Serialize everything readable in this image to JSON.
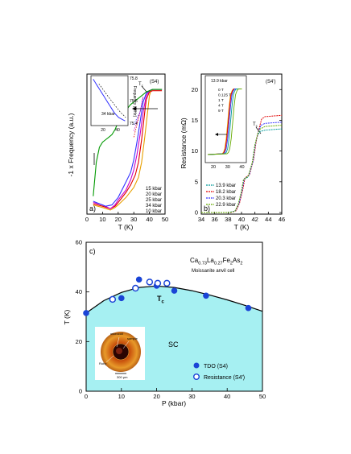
{
  "chart_data": [
    {
      "panel": "a)",
      "type": "line",
      "sample": "(S4)",
      "xlabel": "T (K)",
      "ylabel": "-1 x Frequency (a.u.)",
      "xlim": [
        0,
        50
      ],
      "xticks": [
        "0",
        "10",
        "20",
        "30",
        "40",
        "50"
      ],
      "tc_label": "T",
      "tc_sub": "c",
      "legend_position": "lower-right",
      "series": [
        {
          "name": "15 kbar",
          "color": "#e8a000",
          "x": [
            4,
            10,
            15,
            18,
            20,
            25,
            30,
            33,
            35,
            37,
            39,
            40,
            41,
            42,
            45,
            48
          ],
          "y": [
            0.06,
            0.04,
            0.02,
            0.04,
            0.06,
            0.12,
            0.2,
            0.28,
            0.4,
            0.6,
            0.82,
            0.93,
            0.97,
            0.98,
            0.98,
            0.98
          ]
        },
        {
          "name": "20 kbar",
          "color": "#e00000",
          "x": [
            4,
            10,
            15,
            18,
            20,
            25,
            28,
            31,
            33,
            35,
            37,
            38,
            40,
            42,
            45,
            48
          ],
          "y": [
            0.07,
            0.05,
            0.03,
            0.05,
            0.08,
            0.16,
            0.22,
            0.3,
            0.4,
            0.58,
            0.8,
            0.9,
            0.96,
            0.97,
            0.97,
            0.97
          ]
        },
        {
          "name": "25 kbar",
          "color": "#cc00cc",
          "x": [
            4,
            10,
            15,
            18,
            20,
            25,
            28,
            30,
            32,
            34,
            36,
            38,
            40,
            42,
            45,
            48
          ],
          "y": [
            0.08,
            0.06,
            0.03,
            0.06,
            0.1,
            0.18,
            0.26,
            0.34,
            0.46,
            0.62,
            0.8,
            0.93,
            0.97,
            0.98,
            0.98,
            0.98
          ]
        },
        {
          "name": "34 kbar",
          "color": "#3333ff",
          "x": [
            4,
            8,
            12,
            16,
            20,
            24,
            28,
            30,
            32,
            34,
            36,
            38,
            40,
            42,
            45,
            48
          ],
          "y": [
            0.09,
            0.07,
            0.05,
            0.06,
            0.12,
            0.22,
            0.32,
            0.42,
            0.56,
            0.72,
            0.88,
            0.95,
            0.97,
            0.98,
            0.98,
            0.98
          ]
        },
        {
          "name": "10 kbar",
          "color": "#009900",
          "x": [
            4,
            6,
            8,
            10,
            12,
            14,
            16,
            18,
            20,
            24,
            28,
            32,
            36,
            38,
            40,
            42,
            45,
            48
          ],
          "y": [
            0.13,
            0.4,
            0.52,
            0.56,
            0.58,
            0.6,
            0.62,
            0.66,
            0.72,
            0.8,
            0.86,
            0.9,
            0.94,
            0.96,
            0.97,
            0.98,
            0.98,
            0.98
          ]
        }
      ],
      "inset": {
        "type": "scatter",
        "ylabel": "Frequency (MHz)",
        "yticks": [
          "75.8",
          "75.6",
          "75.4"
        ],
        "xticks": [
          "20",
          "40"
        ],
        "annotation": "34 kbar",
        "x": [
          2,
          5,
          8,
          11,
          14,
          17,
          20,
          23,
          26,
          29,
          32,
          35,
          38,
          41,
          44,
          47
        ],
        "y": [
          75.79,
          75.76,
          75.73,
          75.7,
          75.67,
          75.64,
          75.61,
          75.58,
          75.55,
          75.52,
          75.49,
          75.47,
          75.45,
          75.44,
          75.43,
          75.42
        ],
        "color": "#3333ff"
      }
    },
    {
      "panel": "b)",
      "type": "line",
      "sample": "(S4')",
      "xlabel": "T (K)",
      "ylabel": "Resistance (mΩ)",
      "xlim": [
        34,
        46
      ],
      "ylim": [
        0,
        22
      ],
      "xticks": [
        "34",
        "36",
        "38",
        "40",
        "42",
        "44",
        "46"
      ],
      "yticks": [
        "0",
        "5",
        "10",
        "15",
        "20"
      ],
      "tc_label": "T",
      "tc_sub": "c",
      "series": [
        {
          "name": "13.9 kbar",
          "color": "#009999",
          "x": [
            34,
            38,
            39,
            39.5,
            40,
            40.3,
            41,
            41.6,
            42,
            42.4,
            42.8,
            43.5,
            46
          ],
          "y": [
            0,
            0,
            0.2,
            1.2,
            3.4,
            5.3,
            5.8,
            8,
            11,
            12.6,
            13.2,
            13.4,
            13.6
          ]
        },
        {
          "name": "18.2 kbar",
          "color": "#e00000",
          "x": [
            34,
            38.4,
            39.2,
            39.7,
            40.2,
            40.5,
            41.2,
            41.8,
            42.2,
            42.6,
            43,
            43.5,
            46
          ],
          "y": [
            0,
            0,
            0.3,
            1.5,
            3.8,
            5.6,
            6.2,
            8.6,
            11.6,
            13.6,
            15.2,
            15.6,
            15.8
          ]
        },
        {
          "name": "20.3 kbar",
          "color": "#3333ff",
          "x": [
            34,
            38.3,
            39.1,
            39.6,
            40.1,
            40.4,
            41.1,
            41.7,
            42.1,
            42.5,
            42.9,
            43.5,
            46
          ],
          "y": [
            0,
            0,
            0.3,
            1.4,
            3.6,
            5.5,
            6,
            8.3,
            11.3,
            13.1,
            14.2,
            14.5,
            14.7
          ]
        },
        {
          "name": "22.9 kbar",
          "color": "#66aa00",
          "x": [
            34,
            38.2,
            39,
            39.5,
            40,
            40.3,
            41,
            41.6,
            42,
            42.4,
            42.8,
            43.5,
            46
          ],
          "y": [
            0,
            0,
            0.2,
            1.3,
            3.5,
            5.4,
            5.9,
            8.1,
            11,
            12.8,
            13.6,
            14,
            14.2
          ]
        }
      ],
      "inset": {
        "type": "line",
        "title": "13.9 kbar",
        "xticks": [
          "20",
          "30",
          "40"
        ],
        "series": [
          {
            "name": "0 T",
            "color": "#e8a000",
            "x": [
              16,
              26,
              27,
              28,
              29,
              30,
              31,
              32,
              33,
              34,
              35,
              40
            ],
            "y": [
              0,
              0.2,
              0.5,
              1.5,
              4,
              8,
              12,
              15,
              16,
              16.5,
              16.5,
              16.5
            ]
          },
          {
            "name": "0.125 T",
            "color": "#e00000",
            "x": [
              16,
              26.4,
              27.4,
              28.4,
              29.4,
              30.4,
              31.4,
              32.4,
              33.4,
              34.4,
              35.4,
              40
            ],
            "y": [
              0,
              0.2,
              0.5,
              1.5,
              4,
              8,
              12,
              15,
              16,
              16.5,
              16.5,
              16.5
            ]
          },
          {
            "name": "1 T",
            "color": "#3333ff",
            "x": [
              16,
              27,
              28,
              29,
              30,
              31,
              32,
              33,
              34,
              35,
              36,
              40
            ],
            "y": [
              0,
              0.2,
              0.5,
              1.5,
              4,
              8,
              12,
              15,
              16,
              16.5,
              16.5,
              16.5
            ]
          },
          {
            "name": "4 T",
            "color": "#009999",
            "x": [
              16,
              28,
              29,
              30,
              31,
              32,
              33,
              34,
              35,
              36,
              37,
              40
            ],
            "y": [
              0,
              0.2,
              0.5,
              1.5,
              4,
              8,
              12,
              15,
              16,
              16.5,
              16.5,
              16.5
            ]
          },
          {
            "name": "9 T",
            "color": "#66aa00",
            "x": [
              16,
              29.5,
              30.5,
              31.5,
              32.5,
              33.5,
              34.5,
              35.5,
              36.5,
              37.5,
              38.5,
              40
            ],
            "y": [
              0,
              0.2,
              0.5,
              1.5,
              4,
              8,
              12,
              15,
              16,
              16.5,
              16.5,
              16.5
            ]
          }
        ]
      }
    },
    {
      "panel": "c)",
      "type": "scatter",
      "xlabel": "P (kbar)",
      "ylabel": "T (K)",
      "xlim": [
        0,
        50
      ],
      "ylim": [
        0,
        60
      ],
      "xticks": [
        "0",
        "10",
        "20",
        "30",
        "40",
        "50"
      ],
      "yticks": [
        "0",
        "20",
        "40",
        "60"
      ],
      "compound_parts": [
        "Ca",
        "0.73",
        "La",
        "0.27",
        "Fe",
        "2",
        "As",
        "2"
      ],
      "cell_label": "Moissanite anvil cell",
      "tc_label": "T",
      "tc_sub": "c",
      "region_label": "SC",
      "region_color": "#a6f0f2",
      "series": [
        {
          "name": "TDO (S4)",
          "style": "filled",
          "color": "#1a44d6",
          "x": [
            0,
            10,
            15,
            20,
            25,
            34,
            46
          ],
          "y": [
            31.5,
            37.5,
            45,
            42.5,
            40.5,
            38.5,
            33.5
          ]
        },
        {
          "name": "Resistance (S4')",
          "style": "open",
          "color": "#1a44d6",
          "x": [
            7.5,
            14,
            18,
            20.3,
            22.9
          ],
          "y": [
            37,
            41.5,
            44,
            43.5,
            43.5
          ]
        }
      ],
      "fit_curve": {
        "x": [
          0,
          5,
          10,
          15,
          20,
          25,
          30,
          35,
          40,
          45,
          50
        ],
        "y": [
          31.5,
          36.5,
          39.8,
          41.8,
          42.4,
          41.8,
          40.5,
          38.8,
          36.8,
          34.6,
          32.2
        ]
      },
      "photo_labels": {
        "gasket": "microcoil",
        "sample": "sample",
        "ruby": "Ruby",
        "scale": "300 μm"
      }
    }
  ]
}
